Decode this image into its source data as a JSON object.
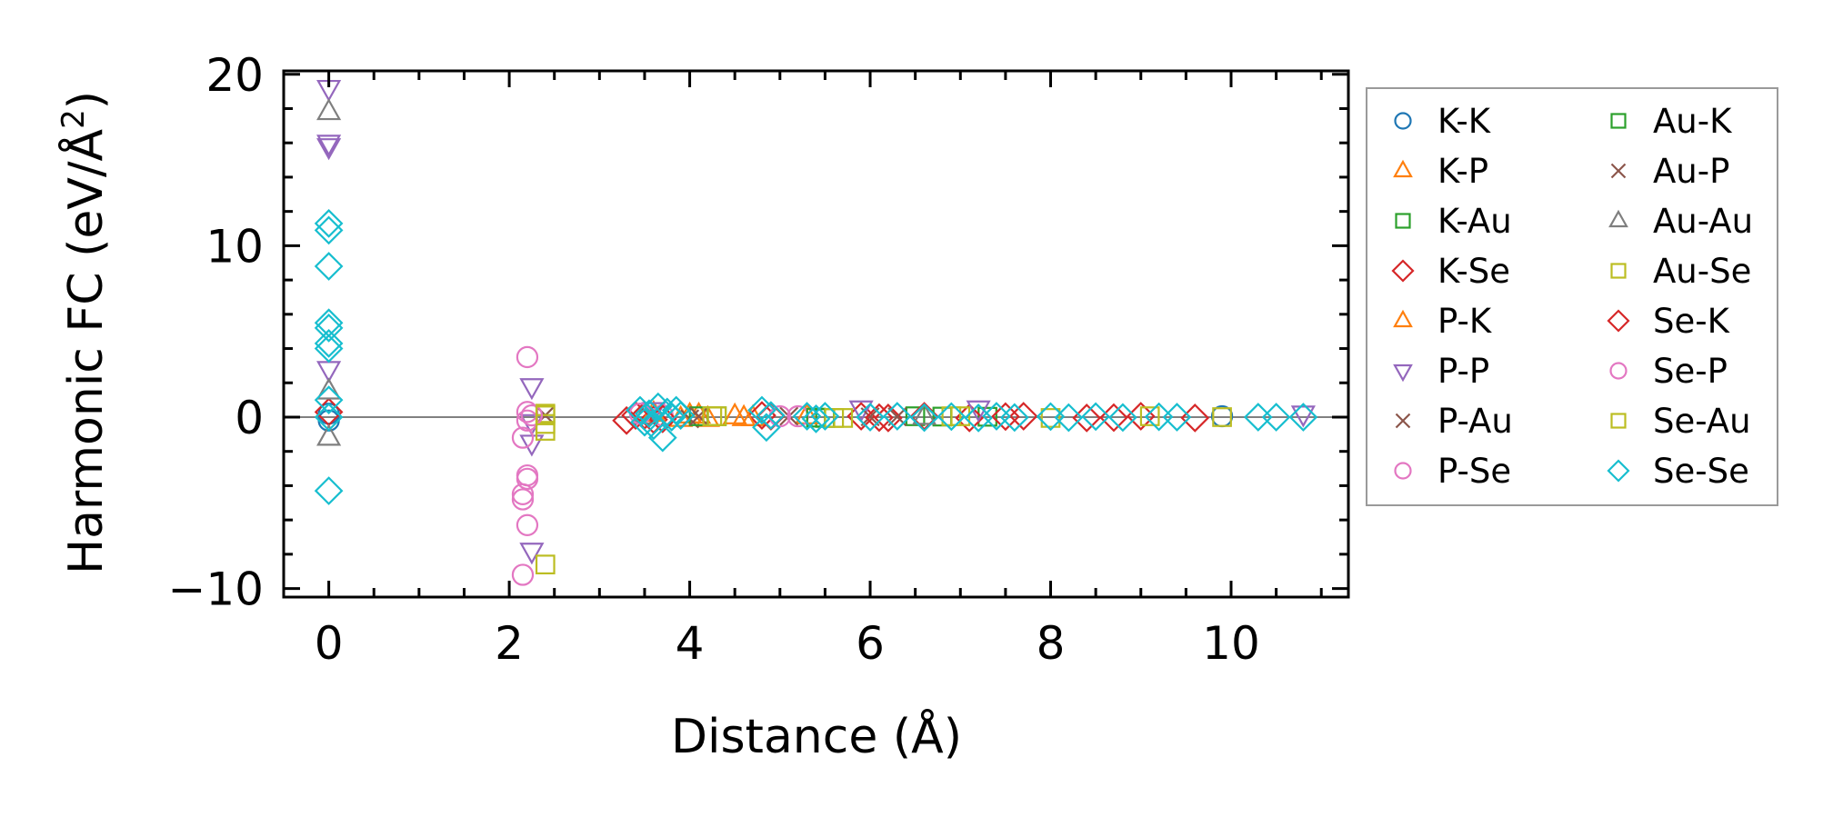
{
  "chart_data": {
    "type": "scatter",
    "xlabel": "Distance (Å)",
    "ylabel_main": "Harmonic FC (eV/Å",
    "ylabel_sup": "2",
    "ylabel_close": ")",
    "xlim": [
      -0.5,
      11.3
    ],
    "ylim": [
      -10.5,
      20.2
    ],
    "xticks": [
      0,
      2,
      4,
      6,
      8,
      10
    ],
    "yticks": [
      20,
      10,
      0,
      -10
    ],
    "ytick_labels": [
      "20",
      "10",
      "0",
      "−10"
    ],
    "xtick_labels": [
      "0",
      "2",
      "4",
      "6",
      "8",
      "10"
    ],
    "zero_line": 0,
    "legend_position": "outside-right",
    "series": [
      {
        "name": "K-K",
        "marker": "circle",
        "color": "#1f77b4",
        "points": [
          [
            0,
            0.2
          ],
          [
            0,
            -0.2
          ],
          [
            9.9,
            0.05
          ]
        ]
      },
      {
        "name": "K-P",
        "marker": "triangle-up",
        "color": "#ff7f0e",
        "points": [
          [
            4.0,
            0.1
          ],
          [
            4.2,
            -0.1
          ],
          [
            4.5,
            0.05
          ],
          [
            4.7,
            -0.05
          ]
        ]
      },
      {
        "name": "K-Au",
        "marker": "square",
        "color": "#2ca02c",
        "points": [
          [
            4.3,
            0.05
          ],
          [
            5.5,
            -0.05
          ],
          [
            6.5,
            0.05
          ],
          [
            7.3,
            0.02
          ]
        ]
      },
      {
        "name": "K-Se",
        "marker": "diamond",
        "color": "#d62728",
        "points": [
          [
            0,
            0.3
          ],
          [
            3.3,
            -0.2
          ],
          [
            3.5,
            0.1
          ],
          [
            3.6,
            -0.15
          ],
          [
            4.8,
            0.1
          ],
          [
            5.9,
            0.05
          ],
          [
            6.2,
            -0.05
          ],
          [
            6.6,
            0.05
          ],
          [
            7.1,
            -0.05
          ],
          [
            7.7,
            0.05
          ],
          [
            8.4,
            -0.05
          ],
          [
            9.0,
            0.05
          ],
          [
            9.6,
            -0.05
          ]
        ]
      },
      {
        "name": "P-K",
        "marker": "triangle-up",
        "color": "#ff7f0e",
        "points": [
          [
            3.6,
            0.2
          ],
          [
            3.9,
            -0.1
          ],
          [
            4.1,
            0.1
          ],
          [
            4.6,
            -0.05
          ],
          [
            5.3,
            0.05
          ]
        ]
      },
      {
        "name": "P-P",
        "marker": "triangle-down",
        "color": "#9467bd",
        "points": [
          [
            0,
            19.2
          ],
          [
            0,
            16.0
          ],
          [
            0,
            15.8
          ],
          [
            0,
            2.8
          ],
          [
            2.25,
            1.8
          ],
          [
            2.25,
            -1.5
          ],
          [
            2.25,
            -7.8
          ],
          [
            2.25,
            -0.3
          ],
          [
            3.6,
            0.4
          ],
          [
            5.9,
            0.5
          ],
          [
            7.2,
            0.5
          ],
          [
            10.8,
            0.2
          ]
        ]
      },
      {
        "name": "P-Au",
        "marker": "x",
        "color": "#8c564b",
        "points": [
          [
            3.55,
            0.1
          ],
          [
            4.0,
            -0.1
          ],
          [
            5.1,
            0.05
          ],
          [
            6.3,
            0.02
          ]
        ]
      },
      {
        "name": "P-Se",
        "marker": "circle",
        "color": "#e377c2",
        "points": [
          [
            2.2,
            3.5
          ],
          [
            2.2,
            0.3
          ],
          [
            2.2,
            -0.2
          ],
          [
            2.15,
            -1.2
          ],
          [
            2.2,
            -3.4
          ],
          [
            2.2,
            -3.6
          ],
          [
            2.15,
            -4.5
          ],
          [
            2.15,
            -4.8
          ],
          [
            2.2,
            -6.3
          ],
          [
            2.15,
            -9.2
          ],
          [
            3.7,
            0.1
          ],
          [
            5.2,
            0.05
          ]
        ]
      },
      {
        "name": "Au-K",
        "marker": "square",
        "color": "#2ca02c",
        "points": [
          [
            4.1,
            0.05
          ],
          [
            5.4,
            -0.03
          ],
          [
            6.8,
            0.03
          ]
        ]
      },
      {
        "name": "Au-P",
        "marker": "x",
        "color": "#8c564b",
        "points": [
          [
            2.4,
            0.1
          ],
          [
            4.1,
            0.05
          ],
          [
            6.0,
            0.02
          ]
        ]
      },
      {
        "name": "Au-Au",
        "marker": "triangle-up",
        "color": "#7f7f7f",
        "points": [
          [
            0,
            17.8
          ],
          [
            0,
            1.5
          ],
          [
            0,
            -1.2
          ],
          [
            3.5,
            0.05
          ],
          [
            6.6,
            0.02
          ]
        ]
      },
      {
        "name": "Au-Se",
        "marker": "square",
        "color": "#bcbd22",
        "points": [
          [
            2.4,
            0.2
          ],
          [
            2.4,
            -0.4
          ],
          [
            2.4,
            -0.8
          ],
          [
            2.4,
            -8.6
          ],
          [
            4.3,
            0.05
          ],
          [
            5.6,
            -0.05
          ],
          [
            6.9,
            0.05
          ],
          [
            8.0,
            -0.05
          ],
          [
            9.1,
            0.05
          ],
          [
            9.9,
            0.0
          ]
        ]
      },
      {
        "name": "Se-K",
        "marker": "diamond",
        "color": "#d62728",
        "points": [
          [
            3.4,
            0.1
          ],
          [
            3.7,
            -0.1
          ],
          [
            4.9,
            0.05
          ],
          [
            6.1,
            -0.03
          ],
          [
            7.5,
            0.03
          ],
          [
            8.7,
            -0.03
          ]
        ]
      },
      {
        "name": "Se-P",
        "marker": "circle",
        "color": "#e377c2",
        "points": [
          [
            2.25,
            0.1
          ],
          [
            3.45,
            0.2
          ],
          [
            5.0,
            0.05
          ]
        ]
      },
      {
        "name": "Se-Au",
        "marker": "square",
        "color": "#bcbd22",
        "points": [
          [
            2.4,
            0.1
          ],
          [
            4.25,
            0.05
          ],
          [
            5.7,
            -0.05
          ],
          [
            7.0,
            0.05
          ]
        ]
      },
      {
        "name": "Se-Se",
        "marker": "diamond",
        "color": "#17becf",
        "points": [
          [
            0,
            11.3
          ],
          [
            0,
            10.9
          ],
          [
            0,
            8.8
          ],
          [
            0,
            5.5
          ],
          [
            0,
            5.2
          ],
          [
            0,
            4.3
          ],
          [
            0,
            4.0
          ],
          [
            0,
            1.0
          ],
          [
            0,
            0.0
          ],
          [
            0,
            -4.3
          ],
          [
            3.45,
            0.4
          ],
          [
            3.5,
            -0.3
          ],
          [
            3.55,
            0.2
          ],
          [
            3.6,
            -0.5
          ],
          [
            3.65,
            0.6
          ],
          [
            3.7,
            -1.2
          ],
          [
            3.75,
            0.3
          ],
          [
            3.8,
            0.0
          ],
          [
            3.85,
            0.4
          ],
          [
            3.9,
            0.1
          ],
          [
            4.8,
            0.4
          ],
          [
            4.85,
            -0.6
          ],
          [
            4.9,
            0.1
          ],
          [
            5.3,
            0.05
          ],
          [
            5.4,
            -0.1
          ],
          [
            5.5,
            0.05
          ],
          [
            6.0,
            0.0
          ],
          [
            6.3,
            0.05
          ],
          [
            6.6,
            -0.03
          ],
          [
            6.9,
            0.03
          ],
          [
            7.2,
            -0.05
          ],
          [
            7.4,
            0.05
          ],
          [
            7.6,
            -0.02
          ],
          [
            8.0,
            0.03
          ],
          [
            8.2,
            -0.03
          ],
          [
            8.5,
            0.03
          ],
          [
            8.8,
            -0.02
          ],
          [
            9.2,
            0.02
          ],
          [
            9.4,
            0.0
          ],
          [
            10.3,
            0.0
          ],
          [
            10.5,
            0.0
          ],
          [
            10.8,
            0.0
          ]
        ]
      }
    ]
  }
}
